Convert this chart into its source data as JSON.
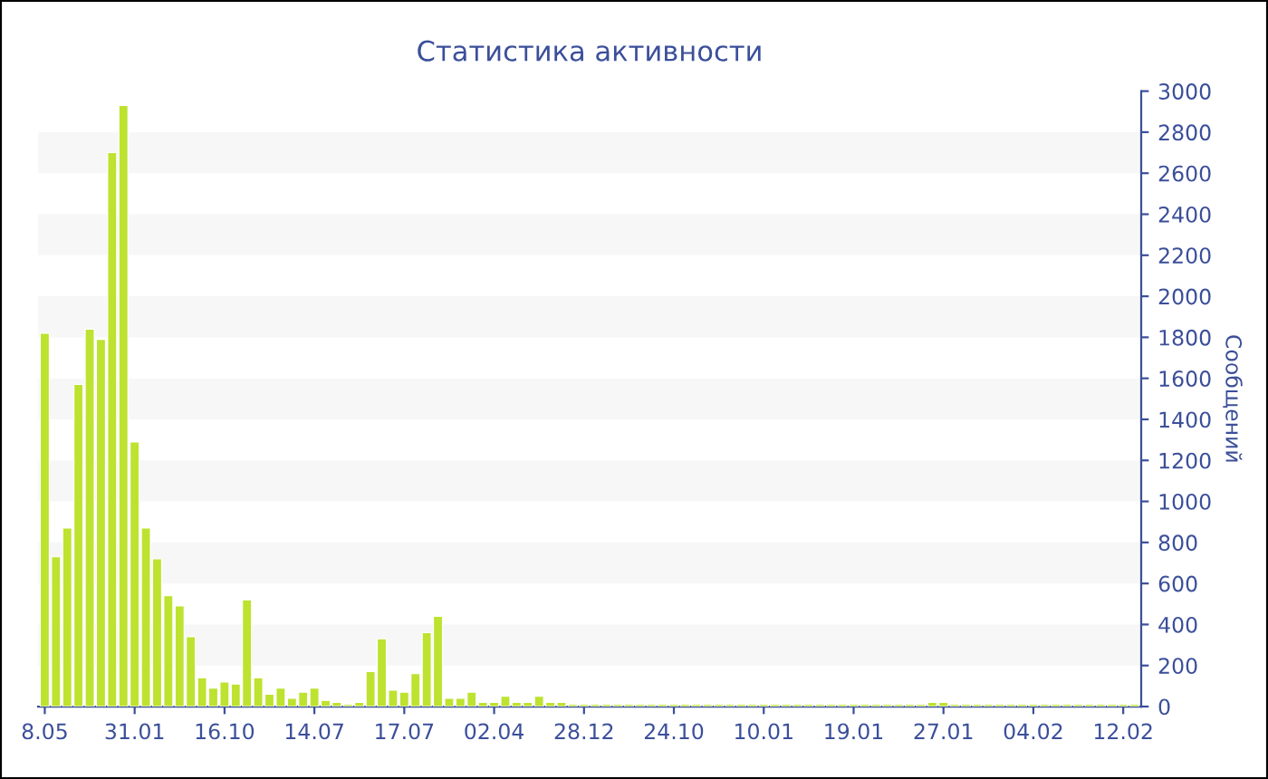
{
  "chart_data": {
    "type": "bar",
    "title": "Статистика активности",
    "ylabel": "Сообщений",
    "categories": [
      "8.05",
      null,
      null,
      null,
      null,
      null,
      null,
      null,
      "31.01",
      null,
      null,
      null,
      null,
      null,
      null,
      null,
      "16.10",
      null,
      null,
      null,
      null,
      null,
      null,
      null,
      "14.07",
      null,
      null,
      null,
      null,
      null,
      null,
      null,
      "17.07",
      null,
      null,
      null,
      null,
      null,
      null,
      null,
      "02.04",
      null,
      null,
      null,
      null,
      null,
      null,
      null,
      "28.12",
      null,
      null,
      null,
      null,
      null,
      null,
      null,
      "24.10",
      null,
      null,
      null,
      null,
      null,
      null,
      null,
      "10.01",
      null,
      null,
      null,
      null,
      null,
      null,
      null,
      "19.01",
      null,
      null,
      null,
      null,
      null,
      null,
      null,
      "27.01",
      null,
      null,
      null,
      null,
      null,
      null,
      null,
      "04.02",
      null,
      null,
      null,
      null,
      null,
      null,
      null,
      "12.02",
      null
    ],
    "values": [
      1820,
      730,
      870,
      1570,
      1840,
      1790,
      2700,
      2930,
      1290,
      870,
      720,
      540,
      490,
      340,
      140,
      90,
      120,
      110,
      520,
      140,
      60,
      90,
      40,
      70,
      90,
      30,
      20,
      10,
      20,
      170,
      330,
      80,
      70,
      160,
      360,
      440,
      40,
      40,
      70,
      20,
      20,
      50,
      20,
      20,
      50,
      20,
      20,
      10,
      10,
      10,
      10,
      10,
      10,
      10,
      10,
      10,
      10,
      10,
      10,
      10,
      10,
      10,
      10,
      10,
      10,
      10,
      10,
      10,
      10,
      10,
      10,
      10,
      10,
      10,
      10,
      10,
      10,
      10,
      10,
      20,
      20,
      10,
      10,
      10,
      10,
      10,
      10,
      10,
      10,
      10,
      10,
      10,
      10,
      10,
      10,
      10,
      10,
      10
    ],
    "color": "#bde22f",
    "ylim": [
      0,
      3000
    ],
    "yticks": [
      0,
      200,
      400,
      600,
      800,
      1000,
      1200,
      1400,
      1600,
      1800,
      2000,
      2200,
      2400,
      2600,
      2800,
      3000
    ],
    "bands": [
      {
        "axis": "y",
        "from": 200,
        "to": 400,
        "color": "#f7f7f7"
      },
      {
        "axis": "y",
        "from": 600,
        "to": 800,
        "color": "#f7f7f7"
      },
      {
        "axis": "y",
        "from": 1000,
        "to": 1200,
        "color": "#f7f7f7"
      },
      {
        "axis": "y",
        "from": 1400,
        "to": 1600,
        "color": "#f7f7f7"
      },
      {
        "axis": "y",
        "from": 1800,
        "to": 2000,
        "color": "#f7f7f7"
      },
      {
        "axis": "y",
        "from": 2200,
        "to": 2400,
        "color": "#f7f7f7"
      },
      {
        "axis": "y",
        "from": 2600,
        "to": 2800,
        "color": "#f7f7f7"
      }
    ]
  }
}
